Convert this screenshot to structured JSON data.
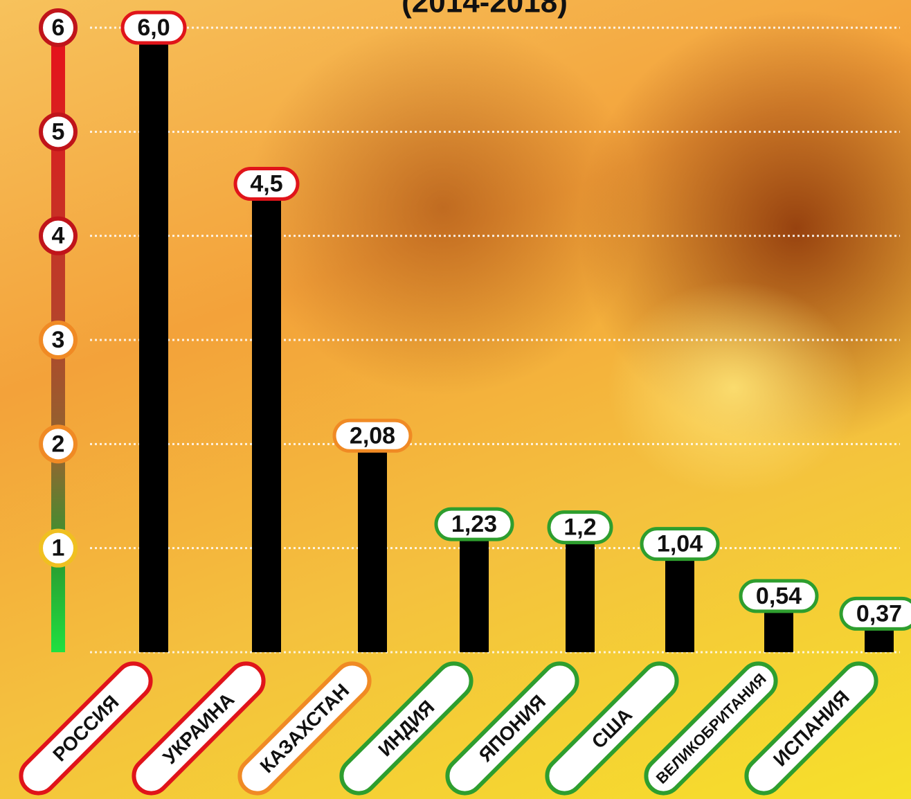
{
  "chart_data": {
    "type": "bar",
    "subtitle": "(2014-2018)",
    "categories": [
      "РОССИЯ",
      "УКРАИНА",
      "КАЗАХСТАН",
      "ИНДИЯ",
      "ЯПОНИЯ",
      "США",
      "ВЕЛИКОБРИТАНИЯ",
      "ИСПАНИЯ"
    ],
    "values": [
      6.0,
      4.5,
      2.08,
      1.23,
      1.2,
      1.04,
      0.54,
      0.37
    ],
    "value_labels": [
      "6,0",
      "4,5",
      "2,08",
      "1,23",
      "1,2",
      "1,04",
      "0,54",
      "0,37"
    ],
    "color": "#000000",
    "label_colors": [
      "#e0141a",
      "#e0141a",
      "#f08a24",
      "#2e9e2e",
      "#2e9e2e",
      "#2e9e2e",
      "#2e9e2e",
      "#2e9e2e"
    ],
    "ylim": [
      0,
      6
    ],
    "yticks": [
      1,
      2,
      3,
      4,
      5,
      6
    ],
    "ytick_colors": [
      "#f0c020",
      "#f08a24",
      "#f08a24",
      "#c0141a",
      "#c0141a",
      "#c0141a"
    ],
    "grid": true
  }
}
